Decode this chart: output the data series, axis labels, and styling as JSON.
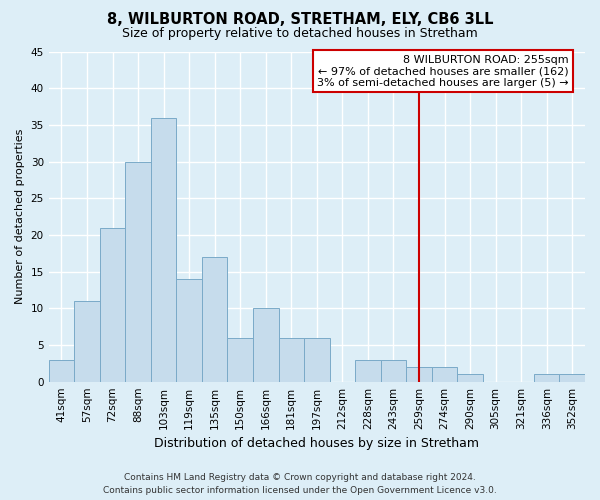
{
  "title": "8, WILBURTON ROAD, STRETHAM, ELY, CB6 3LL",
  "subtitle": "Size of property relative to detached houses in Stretham",
  "xlabel": "Distribution of detached houses by size in Stretham",
  "ylabel": "Number of detached properties",
  "bar_labels": [
    "41sqm",
    "57sqm",
    "72sqm",
    "88sqm",
    "103sqm",
    "119sqm",
    "135sqm",
    "150sqm",
    "166sqm",
    "181sqm",
    "197sqm",
    "212sqm",
    "228sqm",
    "243sqm",
    "259sqm",
    "274sqm",
    "290sqm",
    "305sqm",
    "321sqm",
    "336sqm",
    "352sqm"
  ],
  "bar_heights": [
    3,
    11,
    21,
    30,
    36,
    14,
    17,
    6,
    10,
    6,
    6,
    0,
    3,
    3,
    2,
    2,
    1,
    0,
    0,
    1,
    1
  ],
  "bar_color": "#c6dcec",
  "bar_edge_color": "#7aaac8",
  "vline_index": 14,
  "vline_color": "#cc0000",
  "ylim": [
    0,
    45
  ],
  "yticks": [
    0,
    5,
    10,
    15,
    20,
    25,
    30,
    35,
    40,
    45
  ],
  "annotation_title": "8 WILBURTON ROAD: 255sqm",
  "annotation_line1": "← 97% of detached houses are smaller (162)",
  "annotation_line2": "3% of semi-detached houses are larger (5) →",
  "annotation_box_color": "#ffffff",
  "annotation_box_edge": "#cc0000",
  "footer1": "Contains HM Land Registry data © Crown copyright and database right 2024.",
  "footer2": "Contains public sector information licensed under the Open Government Licence v3.0.",
  "bg_color": "#ddeef7",
  "plot_bg_color": "#ddeef7",
  "grid_color": "#ffffff",
  "title_fontsize": 10.5,
  "subtitle_fontsize": 9,
  "ylabel_fontsize": 8,
  "xlabel_fontsize": 9,
  "tick_fontsize": 7.5,
  "footer_fontsize": 6.5
}
